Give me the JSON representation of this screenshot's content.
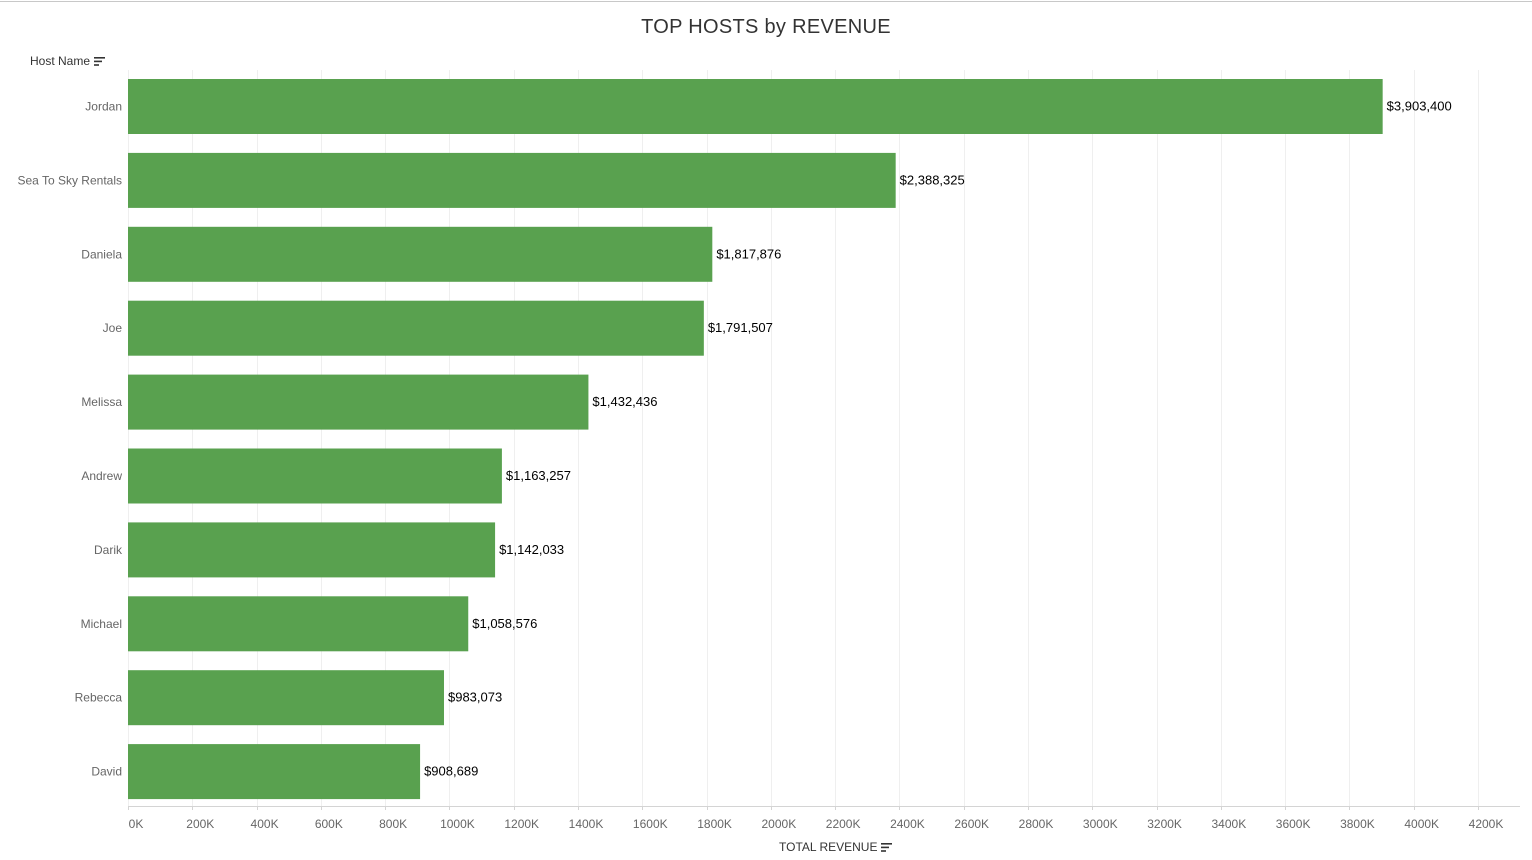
{
  "chart_data": {
    "type": "bar",
    "orientation": "horizontal",
    "title": "TOP HOSTS by REVENUE",
    "ylabel": "Host Name",
    "xlabel": "TOTAL REVENUE",
    "categories": [
      "Jordan",
      "Sea To Sky Rentals",
      "Daniela",
      "Joe",
      "Melissa",
      "Andrew",
      "Darik",
      "Michael",
      "Rebecca",
      "David"
    ],
    "values": [
      3903400,
      2388325,
      1817876,
      1791507,
      1432436,
      1163257,
      1142033,
      1058576,
      983073,
      908689
    ],
    "value_labels": [
      "$3,903,400",
      "$2,388,325",
      "$1,817,876",
      "$1,791,507",
      "$1,432,436",
      "$1,163,257",
      "$1,142,033",
      "$1,058,576",
      "$983,073",
      "$908,689"
    ],
    "xlim": [
      0,
      4200000
    ],
    "x_ticks": [
      0,
      200000,
      400000,
      600000,
      800000,
      1000000,
      1200000,
      1400000,
      1600000,
      1800000,
      2000000,
      2200000,
      2400000,
      2600000,
      2800000,
      3000000,
      3200000,
      3400000,
      3600000,
      3800000,
      4000000,
      4200000
    ],
    "x_tick_labels": [
      "0K",
      "200K",
      "400K",
      "600K",
      "800K",
      "1000K",
      "1200K",
      "1400K",
      "1600K",
      "1800K",
      "2000K",
      "2200K",
      "2400K",
      "2600K",
      "2800K",
      "3000K",
      "3200K",
      "3400K",
      "3600K",
      "3800K",
      "4000K",
      "4200K"
    ],
    "grid": "vertical",
    "bar_color": "#59a14f",
    "grid_color": "#efefef",
    "axis_color": "#d4d4d4"
  },
  "sort_icon": "sort-descending-icon"
}
